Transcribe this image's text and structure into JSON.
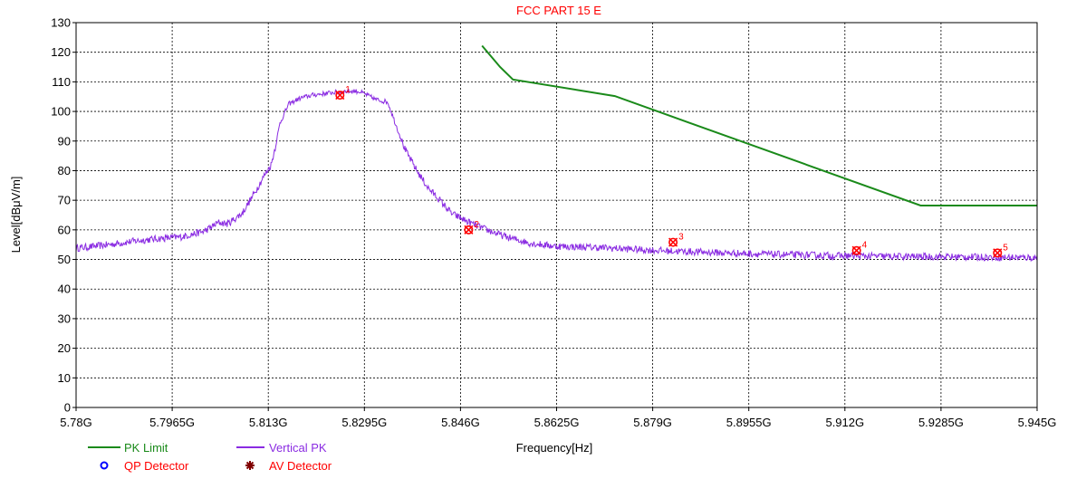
{
  "chart_data": {
    "type": "line",
    "title": "FCC PART 15 E",
    "xlabel": "Frequency[Hz]",
    "ylabel": "Level[dBμV/m]",
    "xlim": [
      5.78,
      5.945
    ],
    "ylim": [
      0,
      130
    ],
    "x_tick_labels": [
      "5.78G",
      "5.7965G",
      "5.813G",
      "5.8295G",
      "5.846G",
      "5.8625G",
      "5.879G",
      "5.8955G",
      "5.912G",
      "5.9285G",
      "5.945G"
    ],
    "y_ticks": [
      0,
      10,
      20,
      30,
      40,
      50,
      60,
      70,
      80,
      90,
      100,
      110,
      120,
      130
    ],
    "grid": true,
    "legend_position": "bottom-left",
    "series": [
      {
        "name": "PK Limit",
        "color": "#1a8a1a",
        "x": [
          5.8497,
          5.8528,
          5.855,
          5.8725,
          5.925,
          5.945
        ],
        "y": [
          122.2,
          115,
          110.8,
          105.2,
          68.2,
          68.2
        ]
      },
      {
        "name": "Vertical PK",
        "color": "#8a2be2",
        "x": [
          5.78,
          5.783,
          5.786,
          5.79,
          5.794,
          5.798,
          5.802,
          5.8045,
          5.806,
          5.8085,
          5.8105,
          5.8125,
          5.8135,
          5.8142,
          5.815,
          5.8165,
          5.8185,
          5.8205,
          5.8225,
          5.8245,
          5.8265,
          5.8285,
          5.83,
          5.8315,
          5.8335,
          5.835,
          5.8365,
          5.8385,
          5.8405,
          5.842,
          5.8445,
          5.846,
          5.8475,
          5.8505,
          5.854,
          5.858,
          5.862,
          5.87,
          5.88,
          5.89,
          5.9,
          5.91,
          5.92,
          5.93,
          5.945
        ],
        "y": [
          53.8,
          54.4,
          55.1,
          56.2,
          57,
          57.6,
          59.5,
          62.5,
          62,
          65.5,
          72,
          79,
          82,
          88,
          96,
          102.5,
          104.5,
          105.5,
          106,
          106.5,
          106.8,
          106.8,
          105.5,
          104,
          103.2,
          95,
          87,
          80,
          74,
          71,
          65.5,
          64,
          62.5,
          60,
          57.5,
          55.5,
          54.5,
          54,
          53,
          52.3,
          51.7,
          51.3,
          51,
          50.9,
          50.6
        ]
      }
    ],
    "legend": [
      {
        "name": "PK Limit",
        "color": "#1a8a1a",
        "symbol": "line"
      },
      {
        "name": "Vertical PK",
        "color": "#8a2be2",
        "symbol": "line"
      },
      {
        "name": "QP Detector",
        "color": "#ff0000",
        "symbol_color": "#0000ff",
        "symbol": "circle"
      },
      {
        "name": "AV Detector",
        "color": "#ff0000",
        "symbol_color": "#800000",
        "symbol": "star"
      }
    ],
    "markers": [
      {
        "label": "1",
        "x": 5.8253,
        "y": 105.5
      },
      {
        "label": "2",
        "x": 5.8474,
        "y": 60
      },
      {
        "label": "3",
        "x": 5.8825,
        "y": 55.8
      },
      {
        "label": "4",
        "x": 5.914,
        "y": 53
      },
      {
        "label": "5",
        "x": 5.9382,
        "y": 52.2
      }
    ]
  }
}
